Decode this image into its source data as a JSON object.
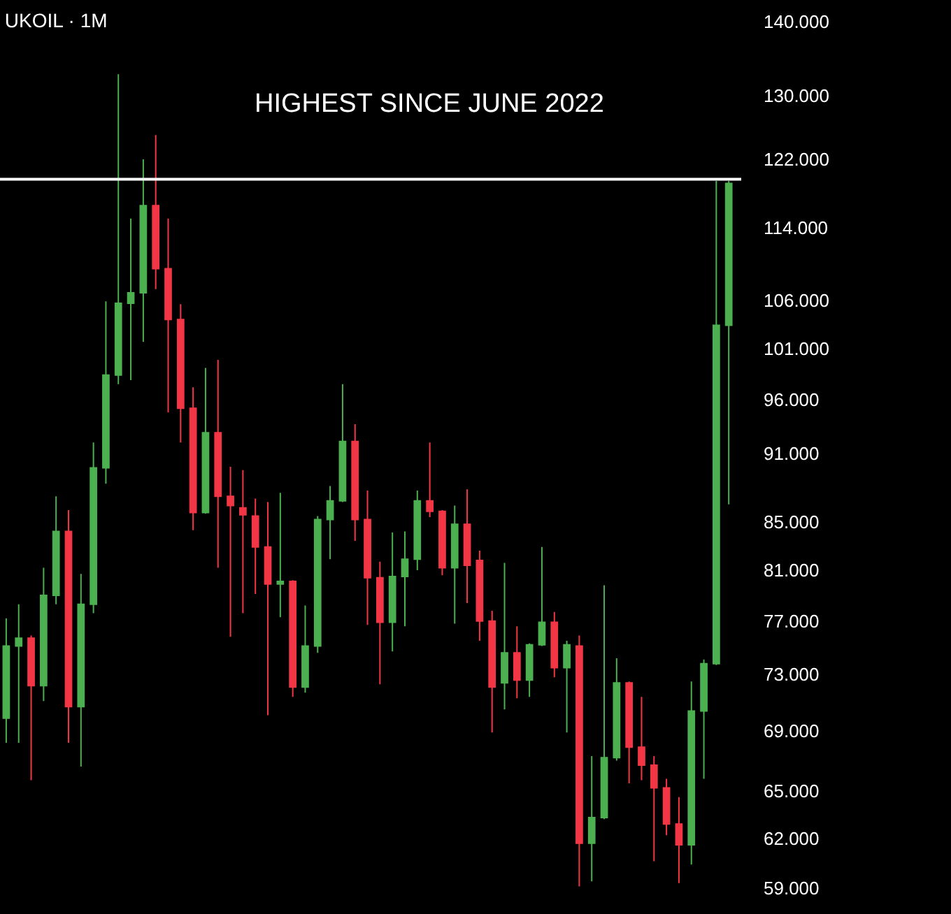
{
  "chart_data": {
    "type": "candlestick",
    "title": "UKOIL · 1M",
    "categories": [
      null,
      null,
      null,
      null,
      null,
      null,
      null,
      null,
      null,
      null,
      null,
      null,
      null,
      null,
      null,
      null,
      null,
      null,
      null,
      null,
      null,
      null,
      null,
      null,
      null,
      null,
      null,
      null,
      null,
      null,
      null,
      null,
      null,
      null,
      null,
      null,
      null,
      null,
      null,
      null,
      null,
      null,
      null,
      null,
      null,
      null,
      null,
      null,
      null,
      null,
      null,
      null,
      null,
      null,
      null,
      null,
      null,
      null,
      null
    ],
    "ohlc": [
      [
        69.9,
        77.2,
        68.2,
        75.1
      ],
      [
        75.1,
        78.3,
        68.2,
        75.7
      ],
      [
        75.7,
        75.9,
        65.7,
        72.2
      ],
      [
        72.2,
        81.2,
        71.1,
        79.0
      ],
      [
        79.0,
        87.2,
        78.3,
        84.2
      ],
      [
        84.2,
        86.0,
        68.2,
        70.7
      ],
      [
        70.7,
        80.7,
        66.6,
        78.3
      ],
      [
        78.3,
        92.0,
        77.6,
        89.7
      ],
      [
        89.7,
        105.9,
        88.3,
        98.4
      ],
      [
        98.4,
        132.8,
        97.5,
        105.7
      ],
      [
        105.7,
        115.0,
        97.9,
        106.8
      ],
      [
        106.8,
        122.0,
        101.7,
        116.5
      ],
      [
        116.5,
        125.0,
        107.2,
        109.4
      ],
      [
        109.4,
        115.0,
        94.8,
        104.0
      ],
      [
        104.0,
        105.6,
        92.0,
        95.2
      ],
      [
        95.2,
        97.2,
        84.3,
        85.8
      ],
      [
        85.8,
        99.1,
        85.7,
        92.9
      ],
      [
        92.9,
        99.9,
        81.2,
        87.2
      ],
      [
        87.2,
        89.8,
        75.8,
        86.4
      ],
      [
        86.2,
        89.5,
        77.6,
        85.6
      ],
      [
        85.5,
        87.0,
        79.1,
        82.9
      ],
      [
        82.9,
        86.7,
        70.1,
        79.9
      ],
      [
        79.9,
        87.5,
        77.3,
        80.1
      ],
      [
        80.1,
        80.2,
        71.4,
        72.1
      ],
      [
        72.1,
        78.2,
        71.7,
        75.1
      ],
      [
        75.1,
        85.5,
        74.6,
        85.2
      ],
      [
        85.2,
        88.1,
        81.9,
        86.8
      ],
      [
        86.8,
        97.5,
        86.7,
        92.1
      ],
      [
        92.1,
        93.7,
        83.4,
        85.2
      ],
      [
        85.2,
        87.7,
        76.7,
        80.4
      ],
      [
        80.4,
        81.7,
        72.3,
        76.9
      ],
      [
        76.9,
        84.1,
        74.7,
        80.5
      ],
      [
        80.5,
        84.2,
        76.6,
        81.9
      ],
      [
        81.9,
        87.7,
        81.0,
        86.8
      ],
      [
        86.8,
        92.0,
        85.4,
        85.9
      ],
      [
        85.9,
        86.0,
        80.6,
        81.2
      ],
      [
        81.2,
        86.4,
        76.8,
        84.8
      ],
      [
        84.8,
        87.8,
        78.4,
        81.4
      ],
      [
        81.8,
        82.6,
        75.5,
        77.0
      ],
      [
        77.0,
        77.8,
        68.9,
        72.1
      ],
      [
        72.4,
        81.6,
        70.5,
        74.6
      ],
      [
        74.6,
        76.6,
        71.3,
        72.6
      ],
      [
        72.6,
        75.3,
        71.4,
        75.2
      ],
      [
        75.2,
        82.9,
        75.1,
        76.9
      ],
      [
        76.9,
        77.7,
        72.8,
        73.5
      ],
      [
        73.5,
        75.5,
        68.9,
        75.2
      ],
      [
        75.1,
        75.9,
        59.1,
        61.7
      ],
      [
        61.7,
        67.3,
        59.4,
        63.3
      ],
      [
        63.3,
        79.8,
        63.2,
        67.2
      ],
      [
        67.2,
        74.2,
        67.0,
        72.4
      ],
      [
        72.4,
        72.5,
        65.5,
        67.9
      ],
      [
        67.9,
        71.4,
        65.7,
        66.7
      ],
      [
        66.7,
        67.3,
        60.6,
        65.2
      ],
      [
        65.2,
        65.8,
        62.2,
        62.9
      ],
      [
        62.9,
        64.6,
        59.3,
        61.6
      ],
      [
        61.6,
        72.5,
        60.4,
        70.4
      ],
      [
        70.4,
        74.1,
        65.8,
        73.8
      ],
      [
        73.8,
        119.4,
        73.7,
        103.4
      ],
      [
        103.4,
        119.4,
        86.5,
        119.1
      ]
    ],
    "colors": [
      "#4caf50",
      "#4caf50",
      "#f23645",
      "#4caf50",
      "#4caf50",
      "#f23645",
      "#4caf50",
      "#4caf50",
      "#4caf50",
      "#4caf50",
      "#4caf50",
      "#4caf50",
      "#f23645",
      "#f23645",
      "#f23645",
      "#f23645",
      "#4caf50",
      "#f23645",
      "#f23645",
      "#f23645",
      "#f23645",
      "#f23645",
      "#4caf50",
      "#f23645",
      "#4caf50",
      "#4caf50",
      "#4caf50",
      "#4caf50",
      "#f23645",
      "#f23645",
      "#f23645",
      "#4caf50",
      "#4caf50",
      "#4caf50",
      "#f23645",
      "#f23645",
      "#4caf50",
      "#f23645",
      "#f23645",
      "#f23645",
      "#4caf50",
      "#f23645",
      "#4caf50",
      "#4caf50",
      "#f23645",
      "#4caf50",
      "#f23645",
      "#4caf50",
      "#4caf50",
      "#4caf50",
      "#f23645",
      "#f23645",
      "#f23645",
      "#f23645",
      "#f23645",
      "#4caf50",
      "#4caf50",
      "#4caf50",
      "#4caf50"
    ],
    "log": true,
    "grid": false,
    "legend": false,
    "ylim": [
      57.5,
      143
    ],
    "yticks": [
      {
        "value": 140,
        "label": "140.000"
      },
      {
        "value": 130,
        "label": "130.000"
      },
      {
        "value": 122,
        "label": "122.000"
      },
      {
        "value": 114,
        "label": "114.000"
      },
      {
        "value": 106,
        "label": "106.000"
      },
      {
        "value": 101,
        "label": "101.000"
      },
      {
        "value": 96,
        "label": "96.000"
      },
      {
        "value": 91,
        "label": "91.000"
      },
      {
        "value": 85,
        "label": "85.000"
      },
      {
        "value": 81,
        "label": "81.000"
      },
      {
        "value": 77,
        "label": "77.000"
      },
      {
        "value": 73,
        "label": "73.000"
      },
      {
        "value": 69,
        "label": "69.000"
      },
      {
        "value": 65,
        "label": "65.000"
      },
      {
        "value": 62,
        "label": "62.000"
      },
      {
        "value": 59,
        "label": "59.000"
      }
    ],
    "tick_labels": "y",
    "ref_lines": [
      {
        "axis": "y",
        "value": 119.6,
        "label": "HIGHEST SINCE JUNE 2022",
        "color": "#ffffff",
        "line_style": "solid"
      }
    ]
  }
}
